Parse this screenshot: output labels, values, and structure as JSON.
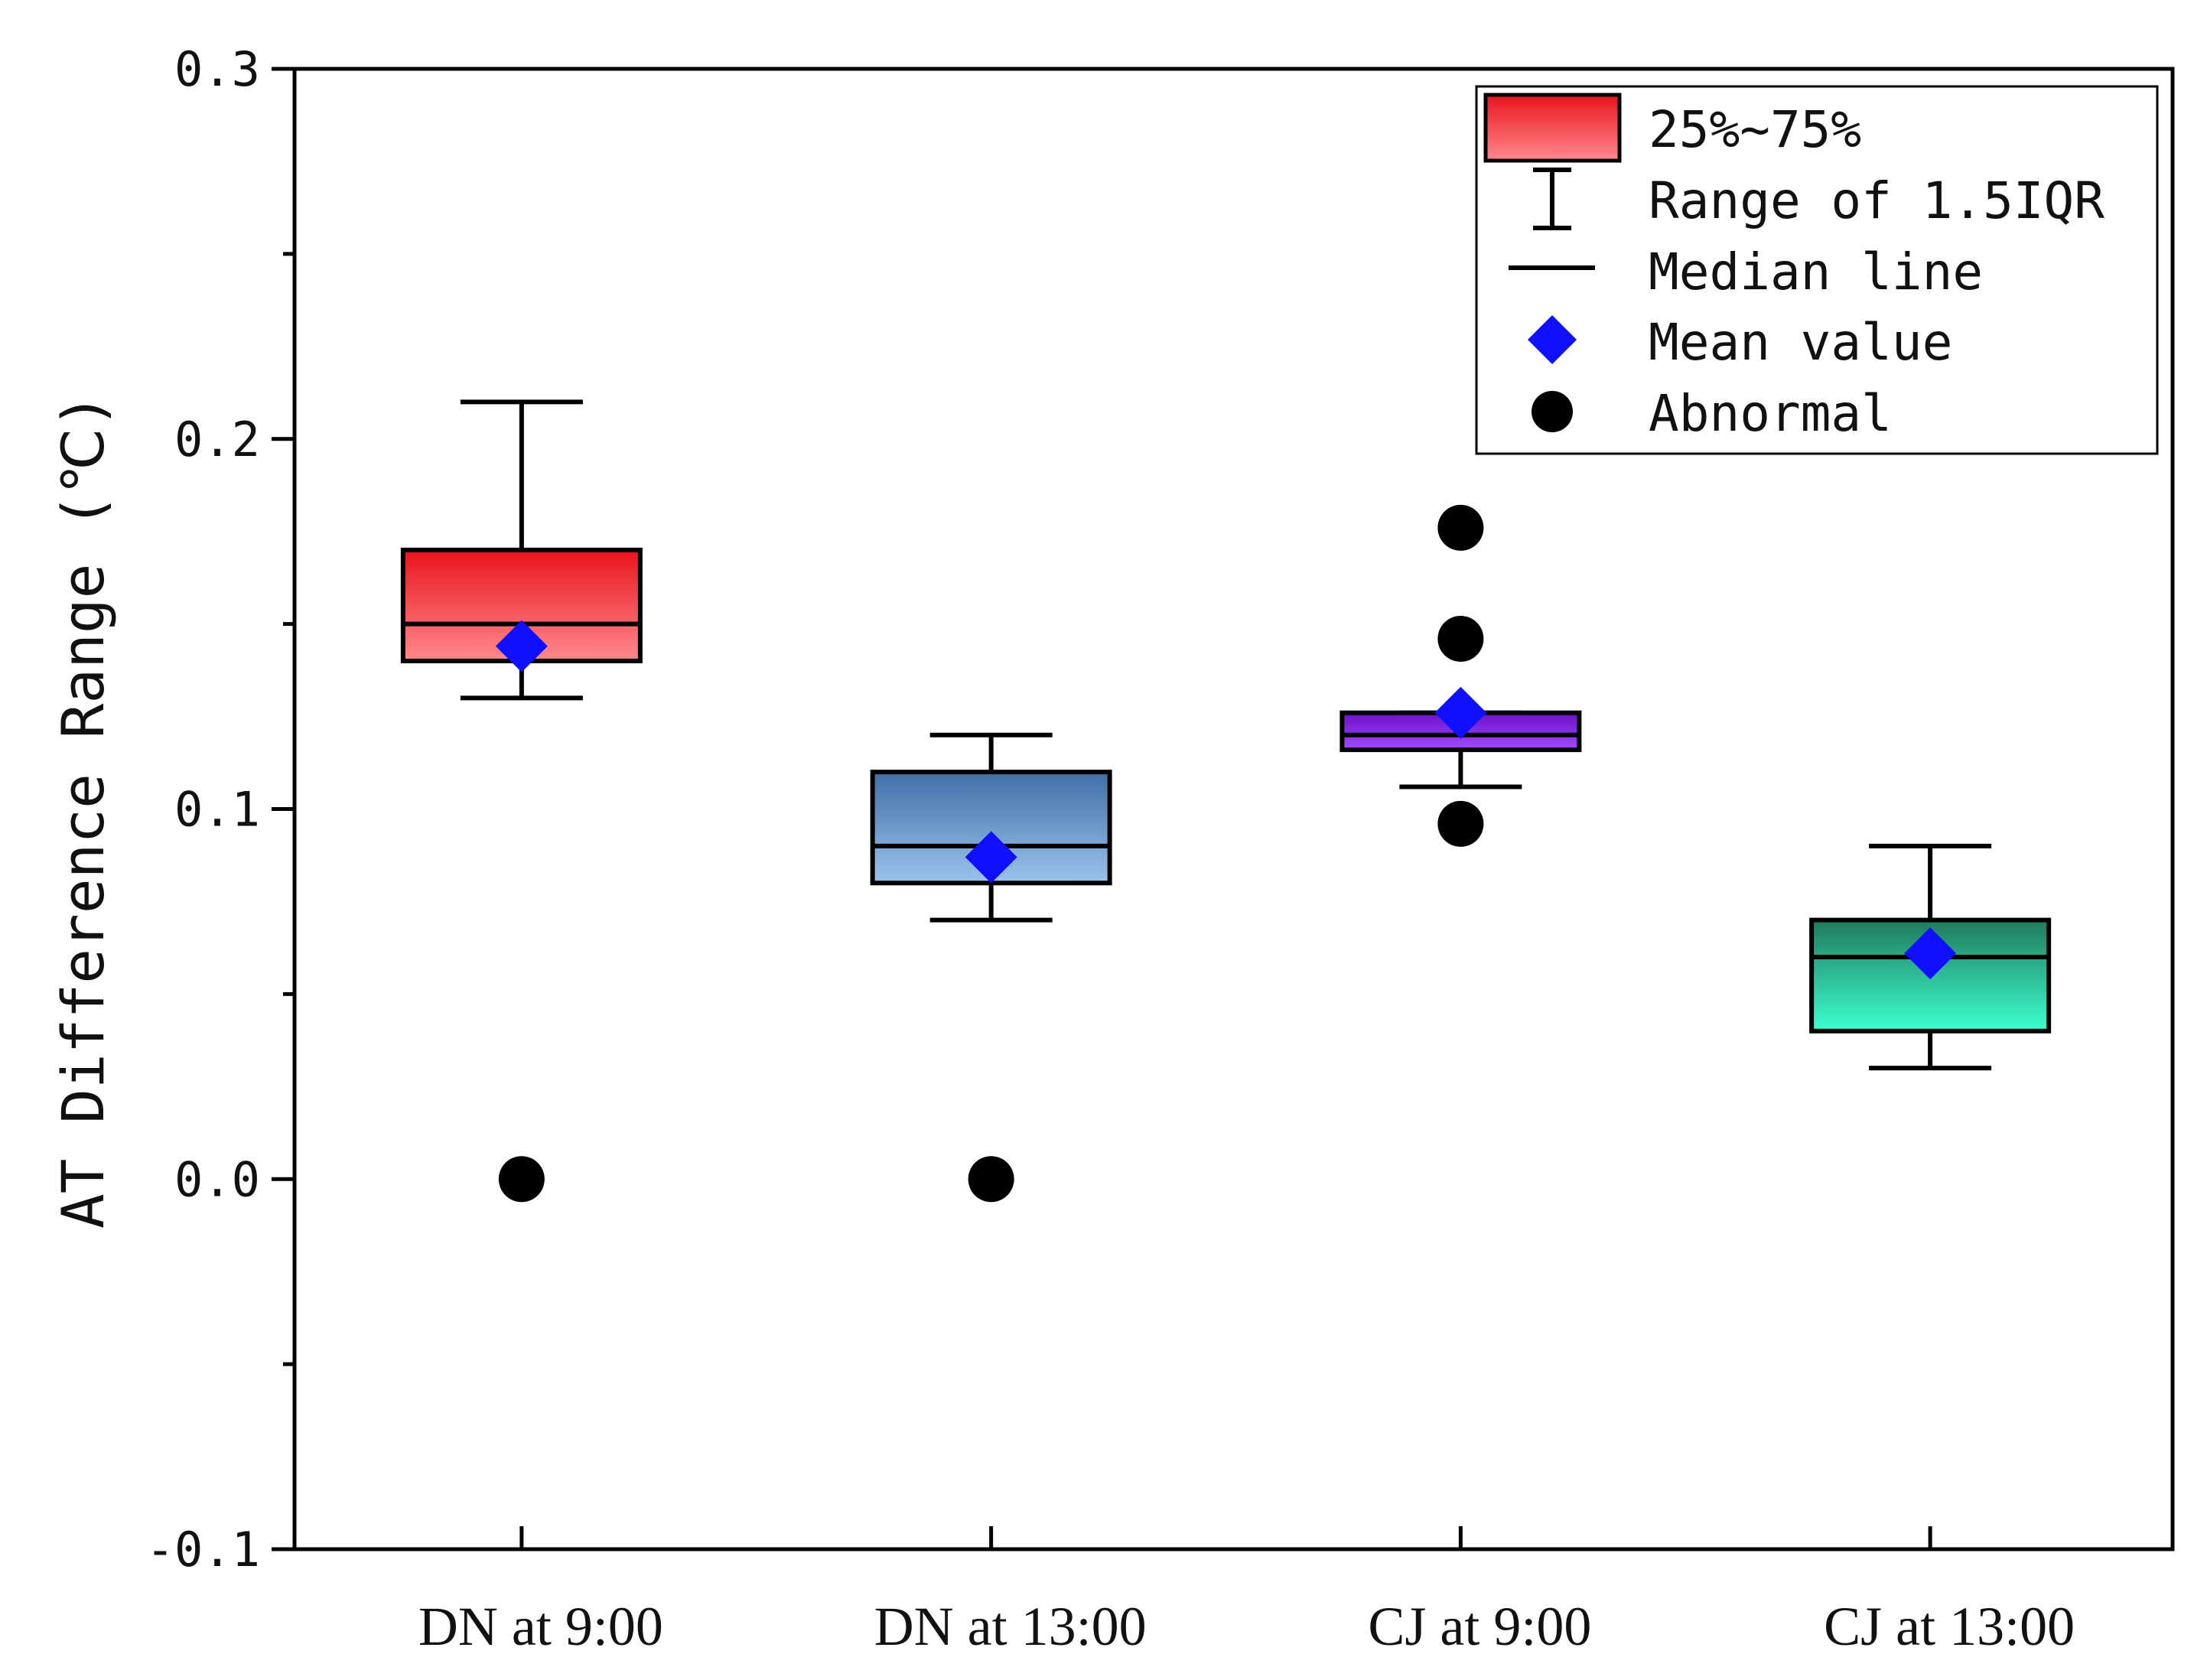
{
  "chart_data": {
    "type": "box",
    "title": "",
    "xlabel": "",
    "ylabel": "AT Difference Range (℃)",
    "ylim": [
      -0.1,
      0.3
    ],
    "yticks": [
      -0.1,
      0.0,
      0.1,
      0.2,
      0.3
    ],
    "ytick_labels": [
      "-0.1",
      "0.0",
      "0.1",
      "0.2",
      "0.3"
    ],
    "categories": [
      "DN at 9:00",
      "DN at 13:00",
      "CJ at 9:00",
      "CJ at 13:00"
    ],
    "boxes": [
      {
        "name": "DN at 9:00",
        "q1": 0.14,
        "median": 0.15,
        "q3": 0.17,
        "whisker_low": 0.13,
        "whisker_high": 0.21,
        "mean": 0.144,
        "outliers": [
          0.0
        ],
        "color_top": "#e8141c",
        "color_bottom": "#ff8a8e"
      },
      {
        "name": "DN at 13:00",
        "q1": 0.08,
        "median": 0.09,
        "q3": 0.11,
        "whisker_low": 0.07,
        "whisker_high": 0.12,
        "mean": 0.087,
        "outliers": [
          0.0
        ],
        "color_top": "#3f6ea6",
        "color_bottom": "#9cc3ec"
      },
      {
        "name": "CJ at 9:00",
        "q1": 0.116,
        "median": 0.12,
        "q3": 0.126,
        "whisker_low": 0.106,
        "whisker_high": 0.126,
        "mean": 0.126,
        "outliers": [
          0.176,
          0.146,
          0.096
        ],
        "color_top": "#6a10c8",
        "color_bottom": "#a24cff"
      },
      {
        "name": "CJ at 13:00",
        "q1": 0.04,
        "median": 0.06,
        "q3": 0.07,
        "whisker_low": 0.03,
        "whisker_high": 0.09,
        "mean": 0.061,
        "outliers": [],
        "color_top": "#1f7a5c",
        "color_bottom": "#3effd0"
      }
    ],
    "legend": {
      "position": "top-right",
      "entries": [
        "25%~75%",
        "Range of 1.5IQR",
        "Median line",
        "Mean value",
        "Abnormal"
      ]
    },
    "colors": {
      "mean": "#1010ff",
      "outlier": "#000000",
      "axis": "#000000",
      "legend_box_top": "#e8141c",
      "legend_box_bottom": "#ff8a8e"
    }
  }
}
